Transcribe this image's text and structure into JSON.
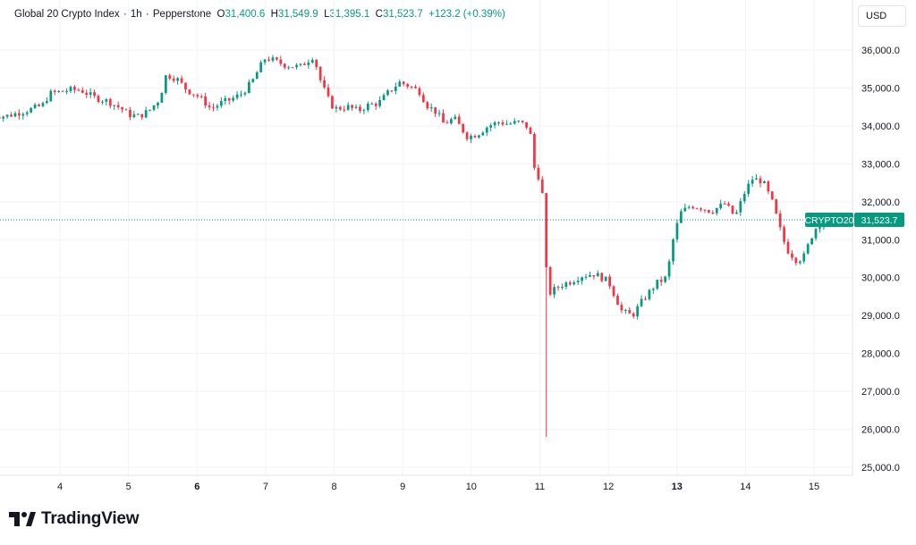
{
  "header": {
    "symbol_name": "Global 20 Crypto Index",
    "interval": "1h",
    "exchange": "Pepperstone",
    "open_label": "O",
    "open_value": "31,400.6",
    "high_label": "H",
    "high_value": "31,549.9",
    "low_label": "L",
    "low_value": "31,395.1",
    "close_label": "C",
    "close_value": "31,523.7",
    "change": "+123.2 (+0.39%)"
  },
  "currency_button": "USD",
  "brand": {
    "name": "TradingView"
  },
  "price_tag": {
    "symbol": "CRYPTO20",
    "price": "31,523.7",
    "value": 31523.7,
    "color": "#089981"
  },
  "colors": {
    "up": "#089981",
    "down": "#f23645",
    "grid": "#f0f3fa",
    "last_line": "#089981"
  },
  "chart_data": {
    "type": "candlestick",
    "ylim": [
      24800,
      36400
    ],
    "y_ticks": [
      {
        "value": 25000,
        "label": "25,000.0"
      },
      {
        "value": 26000,
        "label": "26,000.0"
      },
      {
        "value": 27000,
        "label": "27,000.0"
      },
      {
        "value": 28000,
        "label": "28,000.0"
      },
      {
        "value": 29000,
        "label": "29,000.0"
      },
      {
        "value": 30000,
        "label": "30,000.0"
      },
      {
        "value": 31000,
        "label": "31,000.0"
      },
      {
        "value": 32000,
        "label": "32,000.0"
      },
      {
        "value": 33000,
        "label": "33,000.0"
      },
      {
        "value": 34000,
        "label": "34,000.0"
      },
      {
        "value": 35000,
        "label": "35,000.0"
      },
      {
        "value": 36000,
        "label": "36,000.0"
      }
    ],
    "x_range": [
      3.0,
      16.1
    ],
    "x_ticks": [
      {
        "value": 4,
        "label": "4",
        "bold": false
      },
      {
        "value": 5,
        "label": "5",
        "bold": false
      },
      {
        "value": 6,
        "label": "6",
        "bold": true
      },
      {
        "value": 7,
        "label": "7",
        "bold": false
      },
      {
        "value": 8,
        "label": "8",
        "bold": false
      },
      {
        "value": 9,
        "label": "9",
        "bold": false
      },
      {
        "value": 10,
        "label": "10",
        "bold": false
      },
      {
        "value": 11,
        "label": "11",
        "bold": false
      },
      {
        "value": 12,
        "label": "12",
        "bold": false
      },
      {
        "value": 13,
        "label": "13",
        "bold": true
      },
      {
        "value": 14,
        "label": "14",
        "bold": false
      },
      {
        "value": 15,
        "label": "15",
        "bold": false
      }
    ],
    "path_points": [
      [
        3.0,
        34300
      ],
      [
        3.2,
        34250
      ],
      [
        3.4,
        34350
      ],
      [
        3.6,
        34450
      ],
      [
        3.75,
        34550
      ],
      [
        3.85,
        34850
      ],
      [
        4.0,
        34900
      ],
      [
        4.15,
        34950
      ],
      [
        4.3,
        34950
      ],
      [
        4.5,
        34750
      ],
      [
        4.7,
        34650
      ],
      [
        4.9,
        34450
      ],
      [
        5.0,
        34300
      ],
      [
        5.15,
        34250
      ],
      [
        5.3,
        34400
      ],
      [
        5.45,
        34700
      ],
      [
        5.55,
        35350
      ],
      [
        5.7,
        35250
      ],
      [
        5.85,
        34950
      ],
      [
        6.0,
        34800
      ],
      [
        6.1,
        34650
      ],
      [
        6.2,
        34450
      ],
      [
        6.35,
        34600
      ],
      [
        6.5,
        34700
      ],
      [
        6.65,
        34850
      ],
      [
        6.8,
        35150
      ],
      [
        6.9,
        35500
      ],
      [
        7.0,
        35800
      ],
      [
        7.15,
        35700
      ],
      [
        7.3,
        35600
      ],
      [
        7.5,
        35550
      ],
      [
        7.7,
        35850
      ],
      [
        7.8,
        35200
      ],
      [
        7.9,
        34750
      ],
      [
        8.0,
        34450
      ],
      [
        8.2,
        34500
      ],
      [
        8.35,
        34400
      ],
      [
        8.5,
        34550
      ],
      [
        8.65,
        34600
      ],
      [
        8.8,
        34900
      ],
      [
        8.95,
        35150
      ],
      [
        9.1,
        35050
      ],
      [
        9.25,
        34900
      ],
      [
        9.35,
        34550
      ],
      [
        9.5,
        34350
      ],
      [
        9.6,
        34050
      ],
      [
        9.75,
        34200
      ],
      [
        9.85,
        33950
      ],
      [
        9.95,
        33700
      ],
      [
        10.1,
        33800
      ],
      [
        10.25,
        34000
      ],
      [
        10.4,
        34100
      ],
      [
        10.55,
        34050
      ],
      [
        10.7,
        34100
      ],
      [
        10.85,
        33950
      ],
      [
        10.92,
        32900
      ],
      [
        11.0,
        32600
      ],
      [
        11.05,
        32050
      ],
      [
        11.08,
        30350
      ],
      [
        11.15,
        29600
      ],
      [
        11.3,
        29800
      ],
      [
        11.45,
        29900
      ],
      [
        11.6,
        30050
      ],
      [
        11.8,
        30100
      ],
      [
        12.0,
        29900
      ],
      [
        12.1,
        29500
      ],
      [
        12.2,
        29100
      ],
      [
        12.35,
        29000
      ],
      [
        12.5,
        29400
      ],
      [
        12.7,
        29850
      ],
      [
        12.85,
        30000
      ],
      [
        12.95,
        31050
      ],
      [
        13.05,
        31700
      ],
      [
        13.2,
        31900
      ],
      [
        13.35,
        31850
      ],
      [
        13.5,
        31750
      ],
      [
        13.7,
        31950
      ],
      [
        13.85,
        31600
      ],
      [
        14.0,
        32300
      ],
      [
        14.1,
        32600
      ],
      [
        14.25,
        32550
      ],
      [
        14.4,
        31950
      ],
      [
        14.5,
        31300
      ],
      [
        14.6,
        30750
      ],
      [
        14.75,
        30450
      ],
      [
        14.85,
        30550
      ],
      [
        15.0,
        31250
      ],
      [
        15.1,
        31450
      ],
      [
        15.15,
        31400
      ],
      [
        15.2,
        31524
      ]
    ],
    "flash_wick": {
      "x": 11.1,
      "high": 31450,
      "low": 25800
    }
  }
}
